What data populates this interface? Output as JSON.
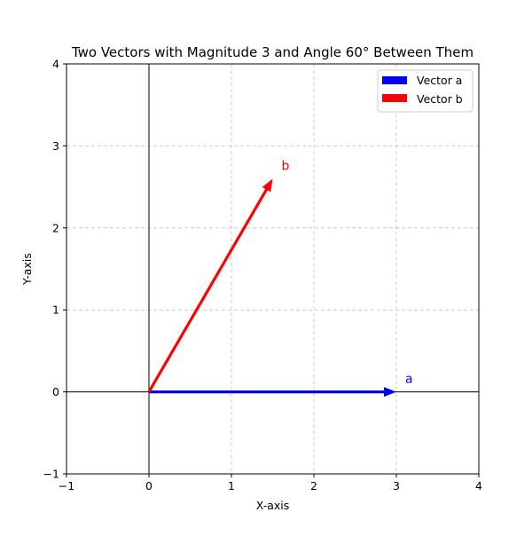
{
  "chart_data": {
    "type": "vector",
    "title": "Two Vectors with Magnitude 3 and Angle 60° Between Them",
    "xlabel": "X-axis",
    "ylabel": "Y-axis",
    "xlim": [
      -1,
      4
    ],
    "ylim": [
      -1,
      4
    ],
    "xticks": [
      -1,
      0,
      1,
      2,
      3,
      4
    ],
    "yticks": [
      -1,
      0,
      1,
      2,
      3,
      4
    ],
    "xtick_labels": [
      "−1",
      "0",
      "1",
      "2",
      "3",
      "4"
    ],
    "ytick_labels": [
      "−1",
      "0",
      "1",
      "2",
      "3",
      "4"
    ],
    "grid": true,
    "legend_position": "top-right",
    "vectors": [
      {
        "name": "Vector a",
        "label": "a",
        "origin": [
          0,
          0
        ],
        "components": [
          3,
          0
        ],
        "color": "#0000ff"
      },
      {
        "name": "Vector b",
        "label": "b",
        "origin": [
          0,
          0
        ],
        "components": [
          1.5,
          2.598
        ],
        "color": "#ff0000"
      }
    ]
  }
}
